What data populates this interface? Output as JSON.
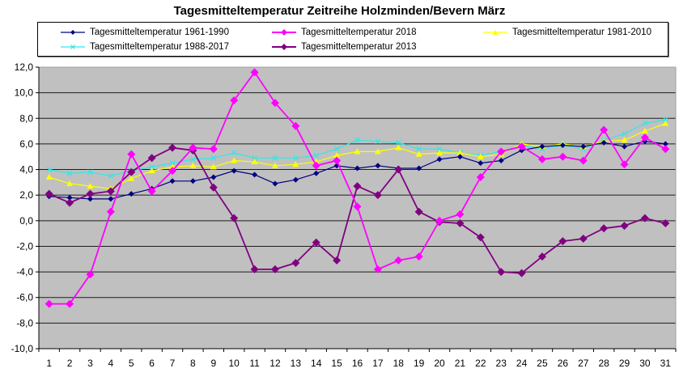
{
  "chart_data": {
    "type": "line",
    "title": "Tagesmitteltemperatur Zeitreihe Holzminden/Bevern März",
    "xlabel": "",
    "ylabel": "",
    "ylim": [
      -10,
      12
    ],
    "y_ticks": [
      "12,0",
      "10,0",
      "8,0",
      "6,0",
      "4,0",
      "2,0",
      "0,0",
      "-2,0",
      "-4,0",
      "-6,0",
      "-8,0",
      "-10,0"
    ],
    "grid": true,
    "legend_position": "top",
    "plot_background": "#c0c0c0",
    "categories": [
      1,
      2,
      3,
      4,
      5,
      6,
      7,
      8,
      9,
      10,
      11,
      12,
      13,
      14,
      15,
      16,
      17,
      18,
      19,
      20,
      21,
      22,
      23,
      24,
      25,
      26,
      27,
      28,
      29,
      30,
      31
    ],
    "series": [
      {
        "name": "Tagesmitteltemperatur 1961-1990",
        "color": "#000080",
        "marker": "diamond-small",
        "values": [
          1.9,
          1.8,
          1.7,
          1.7,
          2.1,
          2.5,
          3.1,
          3.1,
          3.4,
          3.9,
          3.6,
          2.9,
          3.2,
          3.7,
          4.3,
          4.1,
          4.3,
          4.1,
          4.1,
          4.8,
          5.0,
          4.5,
          4.7,
          5.5,
          5.8,
          5.9,
          5.8,
          6.1,
          5.8,
          6.2,
          6.0
        ]
      },
      {
        "name": "Tagesmitteltemperatur 2018",
        "color": "#ff00ff",
        "marker": "diamond",
        "values": [
          -6.5,
          -6.5,
          -4.2,
          0.7,
          5.2,
          2.3,
          3.9,
          5.7,
          5.6,
          9.4,
          11.6,
          9.2,
          7.4,
          4.3,
          4.7,
          1.1,
          -3.8,
          -3.1,
          -2.8,
          0.0,
          0.5,
          3.4,
          5.4,
          5.8,
          4.8,
          5.0,
          4.7,
          7.1,
          4.4,
          6.5,
          5.6
        ]
      },
      {
        "name": "Tagesmitteltemperatur 1981-2010",
        "color": "#ffff00",
        "marker": "triangle",
        "values": [
          3.4,
          2.9,
          2.7,
          2.5,
          3.3,
          3.9,
          4.2,
          4.3,
          4.2,
          4.7,
          4.6,
          4.3,
          4.4,
          4.6,
          5.1,
          5.4,
          5.4,
          5.7,
          5.2,
          5.3,
          5.3,
          5.0,
          5.2,
          6.0,
          5.8,
          6.0,
          5.8,
          6.2,
          6.3,
          7.0,
          7.6
        ]
      },
      {
        "name": "Tagesmitteltemperatur 1988-2017",
        "color": "#33e6e6",
        "marker": "x",
        "values": [
          4.0,
          3.7,
          3.8,
          3.5,
          3.9,
          4.2,
          4.5,
          4.8,
          4.9,
          5.3,
          4.9,
          4.9,
          4.9,
          5.1,
          5.6,
          6.3,
          6.2,
          6.1,
          5.6,
          5.6,
          5.3,
          5.1,
          5.4,
          5.9,
          5.6,
          5.9,
          5.6,
          6.3,
          6.8,
          7.6,
          7.9
        ]
      },
      {
        "name": "Tagesmitteltemperatur 2013",
        "color": "#800080",
        "marker": "diamond",
        "values": [
          2.1,
          1.4,
          2.1,
          2.3,
          3.8,
          4.9,
          5.7,
          5.5,
          2.6,
          0.2,
          -3.8,
          -3.8,
          -3.3,
          -1.7,
          -3.1,
          2.7,
          2.0,
          4.0,
          0.7,
          -0.1,
          -0.2,
          -1.3,
          -4.0,
          -4.1,
          -2.8,
          -1.6,
          -1.4,
          -0.6,
          -0.4,
          0.2,
          -0.2
        ]
      }
    ]
  },
  "legend": {
    "items": [
      {
        "label": "Tagesmitteltemperatur 1961-1990"
      },
      {
        "label": "Tagesmitteltemperatur 2018"
      },
      {
        "label": "Tagesmitteltemperatur 1981-2010"
      },
      {
        "label": "Tagesmitteltemperatur 1988-2017"
      },
      {
        "label": "Tagesmitteltemperatur 2013"
      }
    ]
  }
}
